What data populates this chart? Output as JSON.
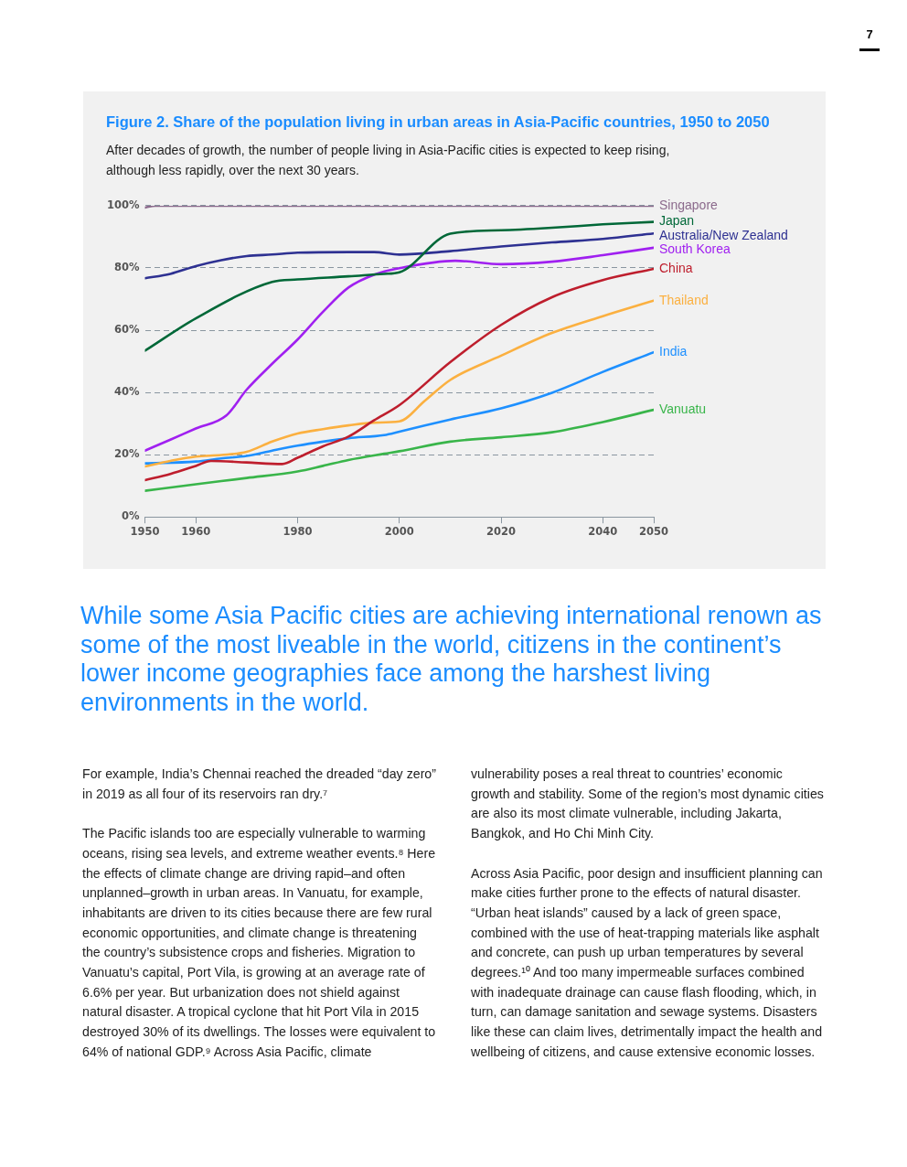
{
  "chart_data": {
    "type": "line",
    "title": "Figure 2. Share of the population living in urban areas in Asia-Pacific countries, 1950 to 2050",
    "subtitle": "After decades of growth, the number of people living in Asia-Pacific cities is expected to keep rising, although less rapidly, over the next 30 years.",
    "series": [
      {
        "name": "Singapore",
        "color": "#8b6a8c",
        "x": [
          1950,
          1952,
          2000,
          2050
        ],
        "values": [
          99.4,
          100,
          100,
          100
        ]
      },
      {
        "name": "Japan",
        "color": "#006838",
        "x": [
          1950,
          1960,
          1975,
          1980,
          1990,
          1997,
          2000,
          2010,
          2020,
          2030,
          2040,
          2050
        ],
        "values": [
          53.4,
          63.8,
          75.5,
          76.3,
          77.3,
          78.1,
          78.6,
          91.0,
          92.1,
          92.9,
          94.0,
          94.8
        ]
      },
      {
        "name": "Australia/New Zealand",
        "color": "#2e3192",
        "x": [
          1950,
          1955,
          1960,
          1965,
          1970,
          1975,
          1980,
          1990,
          1995,
          2000,
          2010,
          2020,
          2030,
          2040,
          2050
        ],
        "values": [
          76.7,
          78.1,
          80.6,
          82.5,
          83.8,
          84.3,
          84.9,
          85.1,
          85.1,
          84.3,
          85.4,
          86.9,
          88.2,
          89.3,
          91.1
        ]
      },
      {
        "name": "South Korea",
        "color": "#a020f0",
        "x": [
          1950,
          1955,
          1960,
          1966,
          1970,
          1975,
          1980,
          1985,
          1990,
          1995,
          2000,
          2011,
          2020,
          2030,
          2040,
          2050
        ],
        "values": [
          21.3,
          24.8,
          28.4,
          32.6,
          40.9,
          49.2,
          57.0,
          65.9,
          73.7,
          77.8,
          79.9,
          82.3,
          81.2,
          82.0,
          84.1,
          86.5
        ]
      },
      {
        "name": "China",
        "color": "#be1e2d",
        "x": [
          1950,
          1955,
          1960,
          1963,
          1970,
          1977,
          1980,
          1985,
          1990,
          1995,
          2000,
          2010,
          2020,
          2030,
          2040,
          2050
        ],
        "values": [
          11.8,
          13.8,
          16.4,
          18.0,
          17.5,
          17.0,
          19.0,
          22.7,
          25.8,
          31.0,
          35.9,
          49.7,
          61.7,
          70.6,
          76.1,
          79.7
        ]
      },
      {
        "name": "Thailand",
        "color": "#fbb040",
        "x": [
          1950,
          1955,
          1960,
          1965,
          1970,
          1975,
          1980,
          1985,
          1990,
          1995,
          2000,
          2005,
          2010,
          2020,
          2030,
          2040,
          2050
        ],
        "values": [
          16.2,
          18.0,
          19.4,
          19.9,
          20.9,
          24.2,
          26.8,
          28.2,
          29.4,
          30.3,
          30.7,
          37.3,
          44.0,
          51.8,
          59.1,
          64.5,
          69.5
        ]
      },
      {
        "name": "India",
        "color": "#1e90ff",
        "x": [
          1950,
          1960,
          1965,
          1970,
          1975,
          1980,
          1985,
          1990,
          1997,
          2000,
          2010,
          2020,
          2030,
          2040,
          2050
        ],
        "values": [
          17.2,
          17.8,
          18.8,
          19.6,
          21.3,
          22.9,
          24.2,
          25.3,
          26.3,
          27.4,
          31.3,
          34.9,
          39.9,
          46.6,
          52.9
        ]
      },
      {
        "name": "Vanuatu",
        "color": "#39b54a",
        "x": [
          1950,
          1960,
          1970,
          1980,
          1985,
          1990,
          1997,
          2000,
          2010,
          2020,
          2030,
          2040,
          2050
        ],
        "values": [
          8.4,
          10.5,
          12.5,
          14.6,
          16.4,
          18.3,
          20.3,
          21.1,
          24.2,
          25.6,
          27.2,
          30.5,
          34.4
        ]
      }
    ],
    "xlim": [
      1950,
      2050
    ],
    "xticks": [
      1950,
      1960,
      1980,
      2000,
      2020,
      2040,
      2050
    ],
    "ylim": [
      0,
      100
    ],
    "yticks": [
      {
        "value": 0,
        "label": "0%"
      },
      {
        "value": 20,
        "label": "20%"
      },
      {
        "value": 40,
        "label": "40%"
      },
      {
        "value": 60,
        "label": "60%"
      },
      {
        "value": 80,
        "label": "80%"
      },
      {
        "value": 100,
        "label": "100%"
      }
    ],
    "grid": "y",
    "legend": false,
    "marker": "none",
    "line_style": "solid",
    "annotations": [
      "7",
      "While some Asia Pacific cities are achieving international renown as some of the most liveable in the world, citizens in the continent’s lower income geographies face among the harshest living environments in the world.",
      "For example, India’s Chennai reached the dreaded “day zero” in 2019 as all four of its reservoirs ran dry.⁷",
      "The Pacific islands too are especially vulnerable to warming oceans, rising sea levels, and extreme weather events.⁸ Here the effects of climate change are driving rapid–and often unplanned–growth in urban areas. In Vanuatu, for example, inhabitants are driven to its cities because there are few rural economic opportunities, and climate change is threatening the country’s subsistence crops and fisheries. Migration to Vanuatu’s capital, Port Vila, is growing at an average rate of 6.6% per year. But urbanization does not shield against natural disaster. A tropical cyclone that hit Port Vila in 2015 destroyed 30% of its dwellings. The losses were equivalent to 64% of national GDP.⁹ Across Asia Pacific, climate vulnerability poses a real threat to countries’ economic growth and stability. Some of the region’s most dynamic cities are also its most climate vulnerable, including Jakarta, Bangkok, and Ho Chi Minh City.",
      "Across Asia Pacific, poor design and insufficient planning can make cities further prone to the effects of natural disaster. “Urban heat islands” caused by a lack of green space, combined with the use of heat-trapping materials like asphalt and concrete, can push up urban temperatures by several degrees.¹⁰ And too many impermeable surfaces combined with inadequate drainage can cause flash flooding, which, in turn, can damage sanitation and sewage systems. Disasters like these can claim lives, detrimentally impact the health and wellbeing of citizens, and cause extensive economic losses."
    ]
  }
}
